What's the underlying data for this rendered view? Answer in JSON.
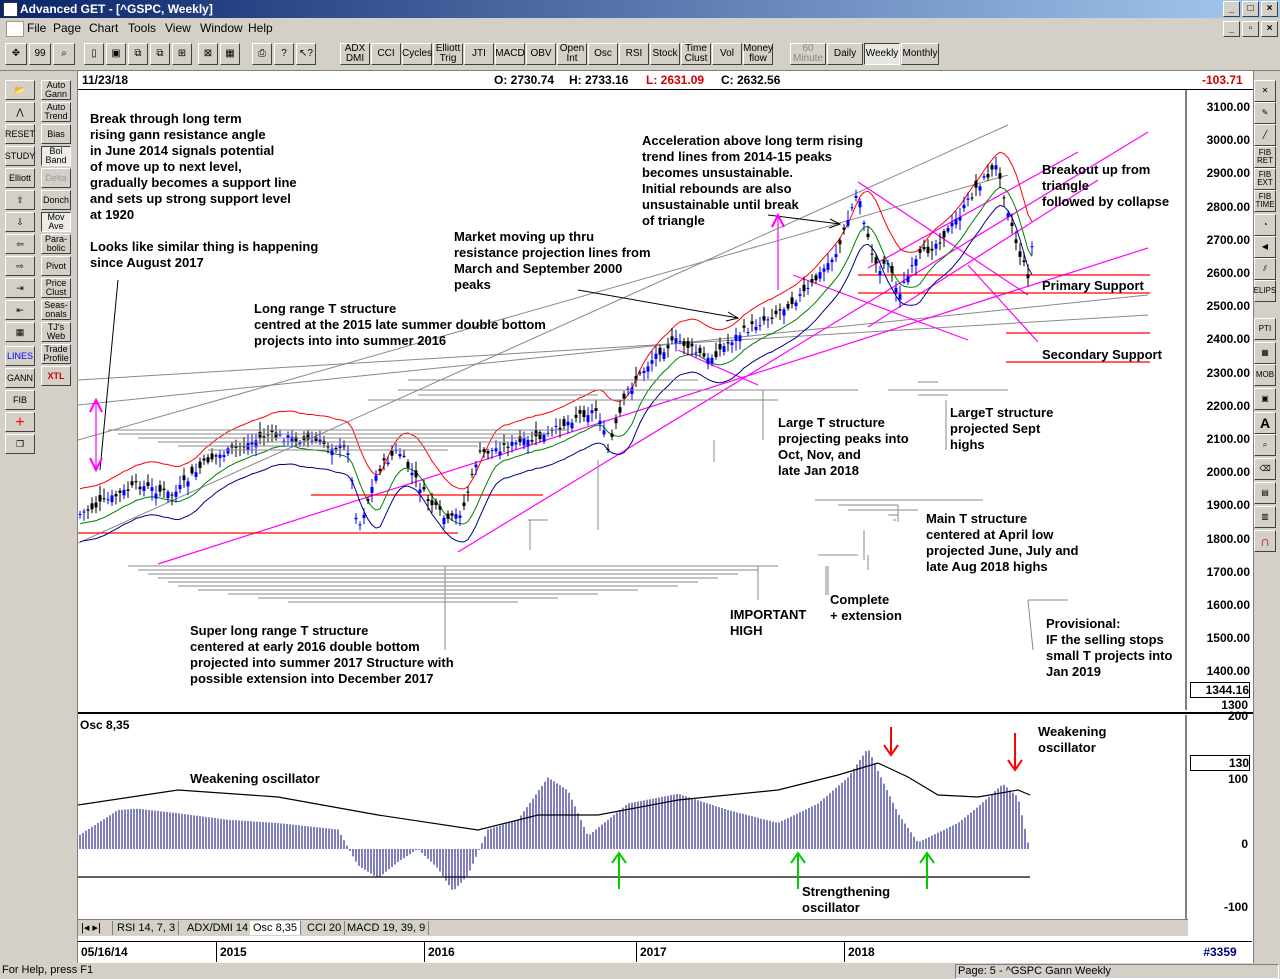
{
  "window": {
    "title": "Advanced GET - [^GSPC, Weekly]"
  },
  "menu": [
    "File",
    "Page",
    "Chart",
    "Tools",
    "View",
    "Window",
    "Help"
  ],
  "toolbar": {
    "indicators": [
      "ADX DMI",
      "CCI",
      "Cycles",
      "Elliott Trig",
      "JTI",
      "MACD",
      "OBV",
      "Open Int",
      "Osc",
      "RSI",
      "Stock",
      "Time Clust",
      "Vol",
      "Money flow"
    ],
    "timeframes": [
      "60 Minute",
      "Daily",
      "Weekly",
      "Monthly"
    ],
    "active_timeframe": "Weekly"
  },
  "left_tools": [
    "Auto Gann",
    "Auto Trend",
    "Bias",
    "Bol Band",
    "Delta",
    "Donch",
    "Mov Ave",
    "Para-bolic",
    "Pivot",
    "Price Clust",
    "Seas-onals",
    "TJ's Web",
    "Trade Profile",
    "XTL"
  ],
  "left_icons": [
    "RESET",
    "STUDY",
    "Elliott",
    "LINES",
    "GANN",
    "FIB"
  ],
  "right_tools": [
    "FIB RET",
    "FIB EXT",
    "FIB TIME",
    "ELIPS",
    "PTI",
    "MOB"
  ],
  "info": {
    "date": "11/23/18",
    "open": "O: 2730.74",
    "high": "H: 2733.16",
    "low": "L: 2631.09",
    "close": "C: 2632.56",
    "change": "-103.71"
  },
  "price_axis": {
    "labels": [
      "3100.00",
      "3000.00",
      "2900.00",
      "2800.00",
      "2700.00",
      "2600.00",
      "2500.00",
      "2400.00",
      "2300.00",
      "2200.00",
      "2100.00",
      "2000.00",
      "1900.00",
      "1800.00",
      "1700.00",
      "1600.00",
      "1500.00",
      "1400.00"
    ],
    "current_box": "1344.16",
    "bottom": "1300"
  },
  "osc_axis": {
    "labels": [
      "200",
      "100",
      "0",
      "-100"
    ],
    "current": "130"
  },
  "osc_title": "Osc 8,35",
  "annotations": {
    "a1": "Break through long term\nrising gann resistance angle\nin June 2014 signals potential\nof move up to next level,\ngradually becomes a support line\nand sets up strong support level\nat 1920",
    "a2": "Looks like similar thing is happening\nsince August 2017",
    "a3": "Long range T structure\ncentred at the 2015 late summer double bottom\nprojects into into summer 2016",
    "a4": "Market moving up thru\nresistance projection lines from\nMarch and September 2000\npeaks",
    "a5": "Acceleration above long term rising\ntrend lines from 2014-15 peaks\nbecomes unsustainable.\nInitial rebounds are also\nunsustainable until break\nof triangle",
    "a6": "Breakout up from\ntriangle\nfollowed by collapse",
    "a7": "Primary Support",
    "a8": "Secondary Support",
    "a9": "Large T structure\nprojecting peaks into\nOct, Nov, and\nlate Jan 2018",
    "a10": "LargeT structure\nprojected Sept\nhighs",
    "a11": "Main T structure\ncentered at April low\nprojected June, July and\nlate Aug 2018 highs",
    "a12": "IMPORTANT\nHIGH",
    "a13": "Complete\n+ extension",
    "a14": "Provisional:\nIF the selling stops\nsmall T projects into\nJan 2019",
    "a15": "Super long range T structure\ncentered at early 2016 double bottom\nprojected into summer 2017 Structure with\npossible extension into December 2017",
    "o1": "Weakening oscillator",
    "o2": "Weakening\noscillator",
    "o3": "Strengthening\noscillator"
  },
  "tabs": [
    "RSI 14, 7, 3",
    "ADX/DMI 14",
    "Osc 8,35",
    "CCI 20",
    "MACD 19, 39, 9"
  ],
  "active_tab": "Osc 8,35",
  "date_axis": {
    "start": "05/16/14",
    "years": [
      "2015",
      "2016",
      "2017",
      "2018"
    ],
    "right": "#3359"
  },
  "status": {
    "left": "For Help, press F1",
    "right": "Page: 5 - ^GSPC Gann Weekly"
  },
  "colors": {
    "red": "#ff0000",
    "blue": "#0000ff",
    "green": "#008000",
    "magenta": "#ff00ff",
    "navy": "#000080",
    "gray": "#808080"
  }
}
